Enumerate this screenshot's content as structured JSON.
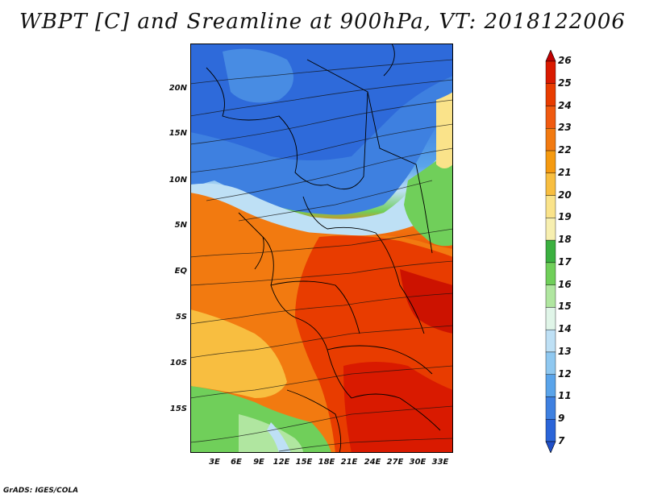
{
  "title": "WBPT [C] and Sreamline at 900hPa, VT: 2018122006",
  "credit": "GrADS: IGES/COLA",
  "map": {
    "lat_labels": [
      "20N",
      "15N",
      "10N",
      "5N",
      "EQ",
      "5S",
      "10S",
      "15S"
    ],
    "lon_labels": [
      "3E",
      "6E",
      "9E",
      "12E",
      "15E",
      "18E",
      "21E",
      "24E",
      "27E",
      "30E",
      "33E"
    ]
  },
  "colorbar": {
    "labels": [
      "26",
      "25",
      "24",
      "23",
      "22",
      "21",
      "20",
      "19",
      "18",
      "17",
      "16",
      "15",
      "14",
      "13",
      "12",
      "11",
      "9",
      "7"
    ],
    "colors": [
      "#c00000",
      "#d91a00",
      "#e83c00",
      "#f05a10",
      "#f27a10",
      "#f59a10",
      "#f8be40",
      "#fae38a",
      "#f7efb0",
      "#3bb040",
      "#70cf5a",
      "#b0e6a0",
      "#e0f5e8",
      "#bee0f5",
      "#8fc8f0",
      "#5aa4ea",
      "#3e80e0",
      "#2a64d8",
      "#1f4fc8"
    ]
  }
}
